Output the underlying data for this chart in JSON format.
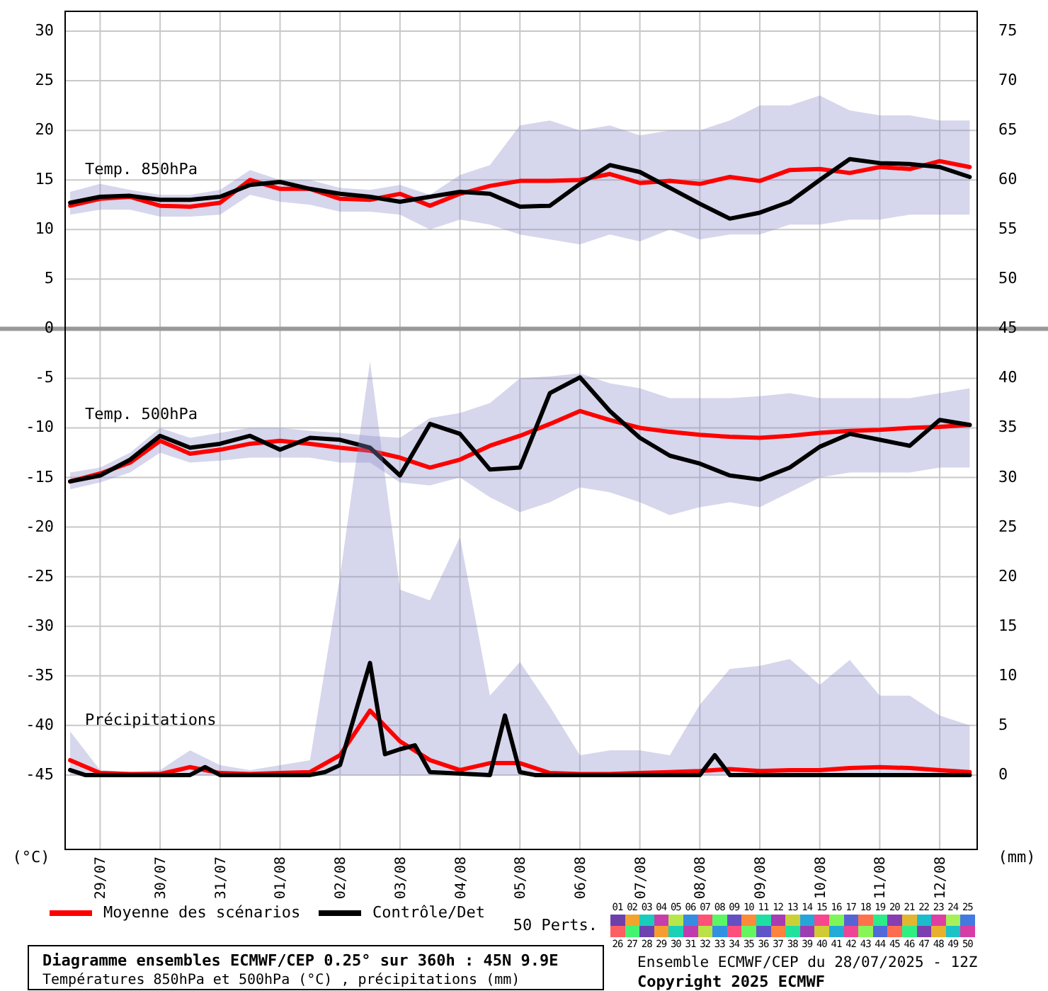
{
  "chart_data": {
    "type": "line",
    "title": "Diagramme ensembles ECMWF/CEP 0.25° sur 360h : 45N 9.9E",
    "subtitle": "Températures 850hPa et 500hPa (°C) , précipitations (mm)",
    "ylabel": "(°C)",
    "y2label": "(mm)",
    "x": [
      "2025-07-28T12:00",
      "2025-07-29T00:00",
      "2025-07-29T12:00",
      "2025-07-30T00:00",
      "2025-07-30T12:00",
      "2025-07-31T00:00",
      "2025-07-31T12:00",
      "2025-08-01T00:00",
      "2025-08-01T12:00",
      "2025-08-02T00:00",
      "2025-08-02T12:00",
      "2025-08-03T00:00",
      "2025-08-03T12:00",
      "2025-08-04T00:00",
      "2025-08-04T12:00",
      "2025-08-05T00:00",
      "2025-08-05T12:00",
      "2025-08-06T00:00",
      "2025-08-06T12:00",
      "2025-08-07T00:00",
      "2025-08-07T12:00",
      "2025-08-08T00:00",
      "2025-08-08T12:00",
      "2025-08-09T00:00",
      "2025-08-09T12:00",
      "2025-08-10T00:00",
      "2025-08-10T12:00",
      "2025-08-11T00:00",
      "2025-08-11T12:00",
      "2025-08-12T00:00",
      "2025-08-12T12:00"
    ],
    "series": [
      {
        "name": "Moyenne des scénarios",
        "color": "#ff0000",
        "values": [
          12.4,
          13.1,
          13.3,
          12.4,
          12.3,
          12.7,
          15.0,
          14.1,
          14.1,
          13.1,
          13.0,
          13.6,
          12.4,
          13.6,
          14.4,
          14.9,
          14.9,
          15.0,
          15.6,
          14.7,
          14.9,
          14.6,
          15.3,
          14.9,
          16.0,
          16.1,
          15.7,
          16.3,
          16.1,
          16.9,
          16.3
        ],
        "lower": [
          11.5,
          12,
          12,
          11.3,
          11.3,
          11.5,
          13.5,
          12.8,
          12.5,
          11.8,
          11.8,
          11.5,
          10,
          11,
          10.5,
          9.5,
          9,
          8.5,
          9.5,
          8.8,
          10,
          9,
          9.5,
          9.5,
          10.5,
          10.5,
          11,
          11,
          11.5,
          11.5,
          11.5
        ],
        "upper": [
          13.8,
          14.6,
          14,
          13.5,
          13.5,
          14,
          16,
          15,
          15,
          14.2,
          14,
          14.5,
          13.5,
          15.5,
          16.5,
          20.5,
          21,
          20,
          20.5,
          19.5,
          20,
          20,
          21,
          22.5,
          22.5,
          23.5,
          22,
          21.5,
          21.5,
          21,
          21
        ]
      },
      {
        "name": "Contrôle/Det",
        "color": "#000000",
        "values": [
          12.7,
          13.3,
          13.4,
          13.0,
          13.0,
          13.3,
          14.5,
          14.8,
          14.1,
          13.6,
          13.3,
          12.8,
          13.3,
          13.8,
          13.6,
          12.3,
          12.4,
          14.6,
          16.5,
          15.8,
          14.2,
          12.6,
          11.1,
          11.7,
          12.8,
          15.0,
          17.1,
          16.7,
          16.6,
          16.3,
          15.3
        ]
      },
      {
        "color": "#ff0000",
        "values": [
          -15.4,
          -14.6,
          -13.5,
          -11.3,
          -12.6,
          -12.2,
          -11.6,
          -11.3,
          -11.6,
          -12.0,
          -12.3,
          -13.0,
          -14.0,
          -13.2,
          -11.8,
          -10.8,
          -9.6,
          -8.3,
          -9.2,
          -10.0,
          -10.4,
          -10.7,
          -10.9,
          -11.0,
          -10.8,
          -10.5,
          -10.3,
          -10.2,
          -10.0,
          -9.9,
          -9.7
        ],
        "lower": [
          -16.2,
          -15.5,
          -14.5,
          -12.5,
          -13.5,
          -13.3,
          -13,
          -13,
          -13,
          -13.5,
          -13.5,
          -15.5,
          -15.8,
          -15,
          -17,
          -18.5,
          -17.5,
          -16,
          -16.5,
          -17.5,
          -18.8,
          -18,
          -17.5,
          -18,
          -16.5,
          -15,
          -14.5,
          -14.5,
          -14.5,
          -14,
          -14
        ],
        "upper": [
          -14.5,
          -14,
          -12.5,
          -10,
          -11,
          -10.5,
          -10,
          -10,
          -10.3,
          -10.5,
          -10.8,
          -11,
          -9,
          -8.5,
          -7.5,
          -5,
          -4.8,
          -4.5,
          -5.5,
          -6,
          -7,
          -7,
          -7,
          -6.8,
          -6.5,
          -7,
          -7,
          -7,
          -7,
          -6.5,
          -6
        ]
      },
      {
        "color": "#000000",
        "values": [
          -15.4,
          -14.8,
          -13.2,
          -10.8,
          -12.0,
          -11.6,
          -10.8,
          -12.2,
          -11.0,
          -11.2,
          -12.0,
          -14.8,
          -9.6,
          -10.6,
          -14.2,
          -14.0,
          -6.5,
          -4.9,
          -8.3,
          -11.0,
          -12.8,
          -13.6,
          -14.8,
          -15.2,
          -14.0,
          -11.9,
          -10.6,
          -11.2,
          -11.8,
          -9.2,
          -9.7
        ]
      },
      {
        "color": "#ff0000",
        "axis": "y2",
        "values": [
          1.5,
          0.2,
          0.1,
          0.1,
          0.8,
          0.2,
          0.1,
          0.2,
          0.3,
          2.0,
          6.5,
          3.4,
          1.5,
          0.5,
          1.2,
          1.2,
          0.2,
          0.1,
          0.1,
          0.2,
          0.3,
          0.4,
          0.6,
          0.4,
          0.5,
          0.5,
          0.7,
          0.8,
          0.7,
          0.5,
          0.3
        ],
        "lower": [
          0,
          0,
          0,
          0,
          0,
          0,
          0,
          0,
          0,
          0,
          0,
          0,
          0,
          0,
          0,
          0,
          0,
          0,
          0,
          0,
          0,
          0,
          0,
          0,
          0,
          0,
          0,
          0,
          0,
          0,
          0
        ],
        "upper": [
          4.4,
          0.5,
          0.3,
          0.5,
          2.5,
          1,
          0.5,
          1,
          1.5,
          20,
          41.7,
          18.7,
          17.6,
          24,
          8,
          11.4,
          6.9,
          2,
          2.5,
          2.5,
          2,
          7.1,
          10.7,
          11,
          11.7,
          9.1,
          11.6,
          8,
          8,
          6,
          5
        ]
      },
      {
        "color": "#000000",
        "axis": "y2",
        "x": [
          "2025-07-28T12:00",
          "2025-07-28T18:00",
          "2025-07-30T12:00",
          "2025-07-30T18:00",
          "2025-07-31T00:00",
          "2025-08-01T12:00",
          "2025-08-01T18:00",
          "2025-08-02T00:00",
          "2025-08-02T12:00",
          "2025-08-02T18:00",
          "2025-08-03T00:00",
          "2025-08-03T06:00",
          "2025-08-03T12:00",
          "2025-08-04T12:00",
          "2025-08-04T18:00",
          "2025-08-05T00:00",
          "2025-08-05T06:00",
          "2025-08-08T00:00",
          "2025-08-08T06:00",
          "2025-08-08T12:00",
          "2025-08-12T12:00"
        ],
        "values": [
          0.5,
          0,
          0,
          0.8,
          0,
          0,
          0.3,
          1.0,
          11.3,
          2.1,
          2.6,
          3.0,
          0.3,
          0,
          6.0,
          0.3,
          0,
          0,
          2.0,
          0,
          0
        ]
      }
    ],
    "annotations": [
      "Temp. 850hPa",
      "Temp. 500hPa",
      "Précipitations",
      "Ensemble ECMWF/CEP du 28/07/2025 - 12Z",
      "Copyright 2025 ECMWF",
      "50 Perts.",
      "01",
      "02",
      "03",
      "04",
      "05",
      "06",
      "07",
      "08",
      "09",
      "10",
      "11",
      "12",
      "13",
      "14",
      "15",
      "16",
      "17",
      "18",
      "19",
      "20",
      "21",
      "22",
      "23",
      "24",
      "25",
      "26",
      "27",
      "28",
      "29",
      "30",
      "31",
      "32",
      "33",
      "34",
      "35",
      "36",
      "37",
      "38",
      "39",
      "40",
      "41",
      "42",
      "43",
      "44",
      "45",
      "46",
      "47",
      "48",
      "49",
      "50"
    ],
    "xlim": [
      "2025-07-28T10:00",
      "2025-08-12T15:00"
    ],
    "xticks": [
      {
        "value": "2025-07-29T00:00",
        "label": "29/07"
      },
      {
        "value": "2025-07-30T00:00",
        "label": "30/07"
      },
      {
        "value": "2025-07-31T00:00",
        "label": "31/07"
      },
      {
        "value": "2025-08-01T00:00",
        "label": "01/08"
      },
      {
        "value": "2025-08-02T00:00",
        "label": "02/08"
      },
      {
        "value": "2025-08-03T00:00",
        "label": "03/08"
      },
      {
        "value": "2025-08-04T00:00",
        "label": "04/08"
      },
      {
        "value": "2025-08-05T00:00",
        "label": "05/08"
      },
      {
        "value": "2025-08-06T00:00",
        "label": "06/08"
      },
      {
        "value": "2025-08-07T00:00",
        "label": "07/08"
      },
      {
        "value": "2025-08-08T00:00",
        "label": "08/08"
      },
      {
        "value": "2025-08-09T00:00",
        "label": "09/08"
      },
      {
        "value": "2025-08-10T00:00",
        "label": "10/08"
      },
      {
        "value": "2025-08-11T00:00",
        "label": "11/08"
      },
      {
        "value": "2025-08-12T00:00",
        "label": "12/08"
      }
    ],
    "ylim": [
      -52.5,
      32
    ],
    "yticks": [
      -45,
      -40,
      -35,
      -30,
      -25,
      -20,
      -15,
      -10,
      -5,
      0,
      5,
      10,
      15,
      20,
      25,
      30
    ],
    "y2lim": [
      -7.5,
      77
    ],
    "y2ticks": [
      0,
      5,
      10,
      15,
      20,
      25,
      30,
      35,
      40,
      45,
      50,
      55,
      60,
      65,
      70,
      75
    ],
    "ref_lines": [
      {
        "axis": "y",
        "value": 0,
        "color": "#999999"
      }
    ],
    "grid": true,
    "legend": "bottom"
  }
}
